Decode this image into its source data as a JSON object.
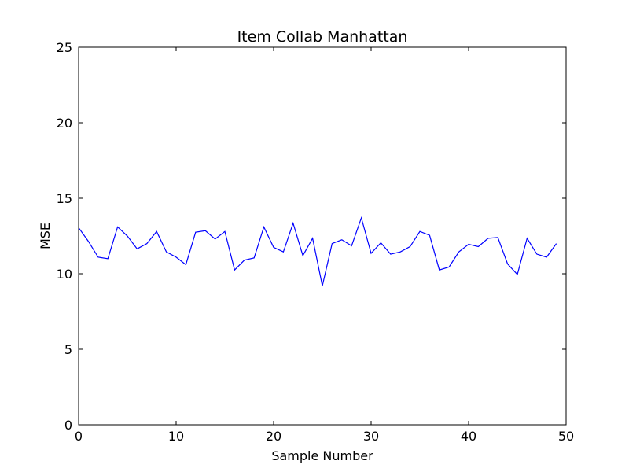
{
  "chart_data": {
    "type": "line",
    "title": "Item Collab Manhattan",
    "xlabel": "Sample Number",
    "ylabel": "MSE",
    "xlim": [
      0,
      50
    ],
    "ylim": [
      0,
      25
    ],
    "xticks": [
      0,
      10,
      20,
      30,
      40,
      50
    ],
    "yticks": [
      0,
      5,
      10,
      15,
      20,
      25
    ],
    "grid": false,
    "series": [
      {
        "color": "#0000ff",
        "x": [
          0,
          1,
          2,
          3,
          4,
          5,
          6,
          7,
          8,
          9,
          10,
          11,
          12,
          13,
          14,
          15,
          16,
          17,
          18,
          19,
          20,
          21,
          22,
          23,
          24,
          25,
          26,
          27,
          28,
          29,
          30,
          31,
          32,
          33,
          34,
          35,
          36,
          37,
          38,
          39,
          40,
          41,
          42,
          43,
          44,
          45,
          46,
          47,
          48,
          49
        ],
        "y": [
          13.05,
          12.15,
          11.1,
          11.0,
          13.1,
          12.5,
          11.65,
          12.0,
          12.8,
          11.45,
          11.1,
          10.6,
          12.75,
          12.85,
          12.3,
          12.8,
          10.25,
          10.9,
          11.05,
          13.1,
          11.75,
          11.45,
          13.35,
          11.2,
          12.35,
          9.2,
          12.0,
          12.25,
          11.85,
          13.7,
          11.35,
          12.05,
          11.3,
          11.45,
          11.8,
          12.8,
          12.55,
          10.25,
          10.45,
          11.45,
          11.95,
          11.8,
          12.35,
          12.4,
          10.65,
          9.95,
          12.35,
          11.3,
          11.1,
          12.0
        ]
      }
    ]
  }
}
